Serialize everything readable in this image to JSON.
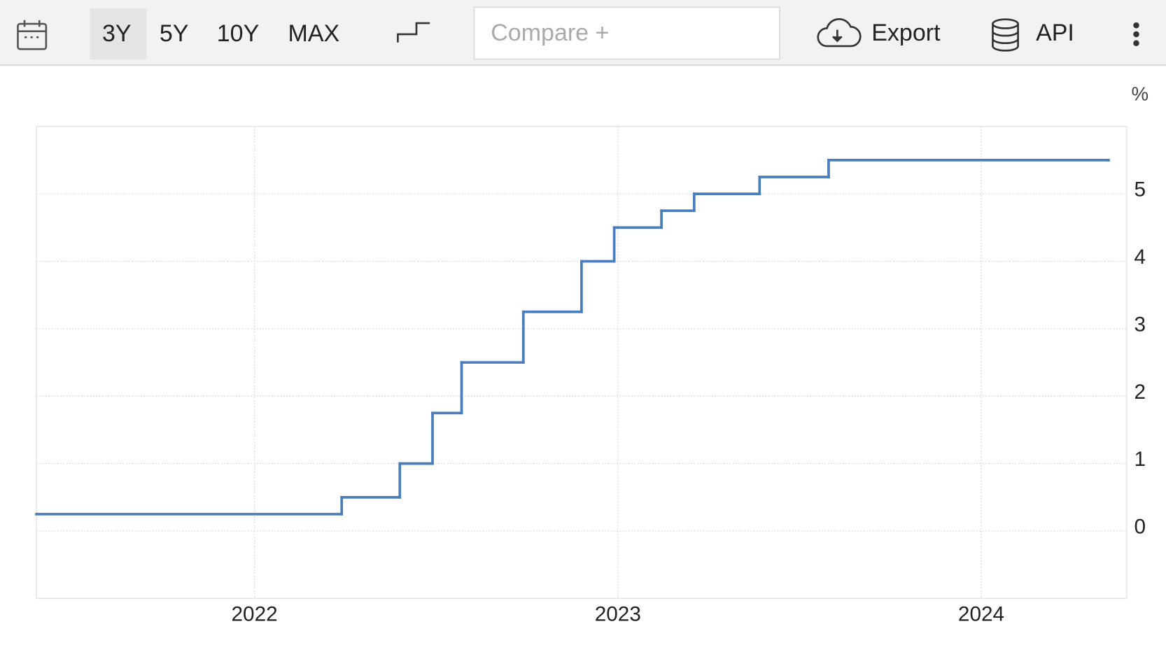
{
  "toolbar": {
    "ranges": [
      "3Y",
      "5Y",
      "10Y",
      "MAX"
    ],
    "compare_placeholder": "Compare +",
    "export": "Export",
    "api": "API"
  },
  "chart_data": {
    "type": "line",
    "step": true,
    "y_unit": "%",
    "color": "#4a7ebb",
    "x": [
      2021.4,
      2022.24,
      2022.4,
      2022.49,
      2022.57,
      2022.74,
      2022.9,
      2022.99,
      2023.12,
      2023.21,
      2023.39,
      2023.58,
      2024.35
    ],
    "values": [
      0.25,
      0.5,
      1.0,
      1.75,
      2.5,
      3.25,
      4.0,
      4.5,
      4.75,
      5.0,
      5.25,
      5.5,
      5.5
    ],
    "xlim": [
      2021.4,
      2024.4
    ],
    "xticks": [
      2022,
      2023,
      2024
    ],
    "ylim": [
      -1,
      6
    ],
    "yticks": [
      0,
      1,
      2,
      3,
      4,
      5
    ],
    "grid": true
  }
}
